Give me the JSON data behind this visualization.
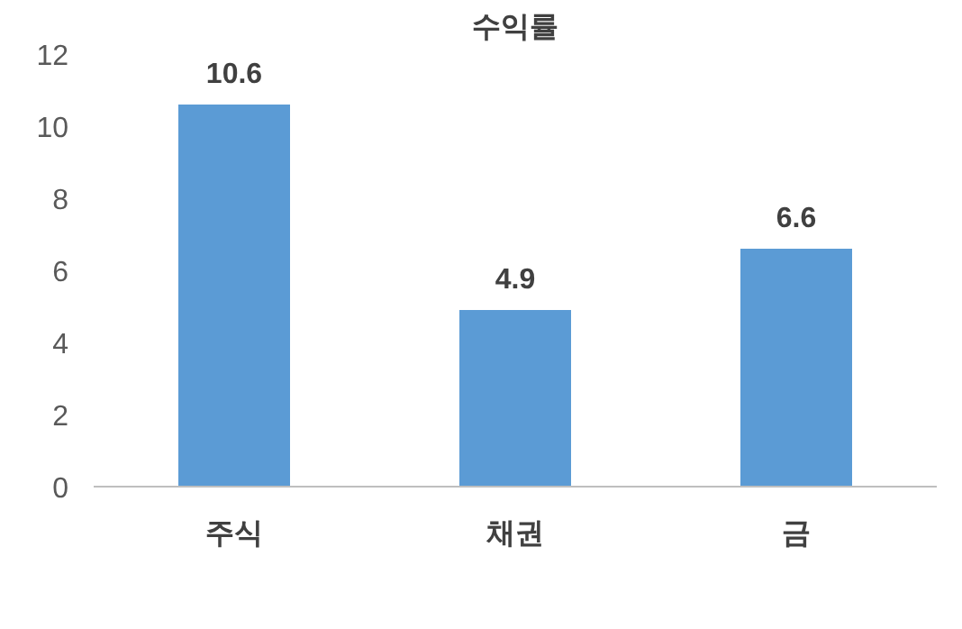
{
  "chart_data": {
    "type": "bar",
    "title": "수익률",
    "categories": [
      "주식",
      "채권",
      "금"
    ],
    "values": [
      10.6,
      4.9,
      6.6
    ],
    "color": "#5b9bd5",
    "ylim": [
      0,
      12
    ],
    "yticks": [
      0,
      2,
      4,
      6,
      8,
      10,
      12
    ],
    "grid": false,
    "data_labels": true
  }
}
